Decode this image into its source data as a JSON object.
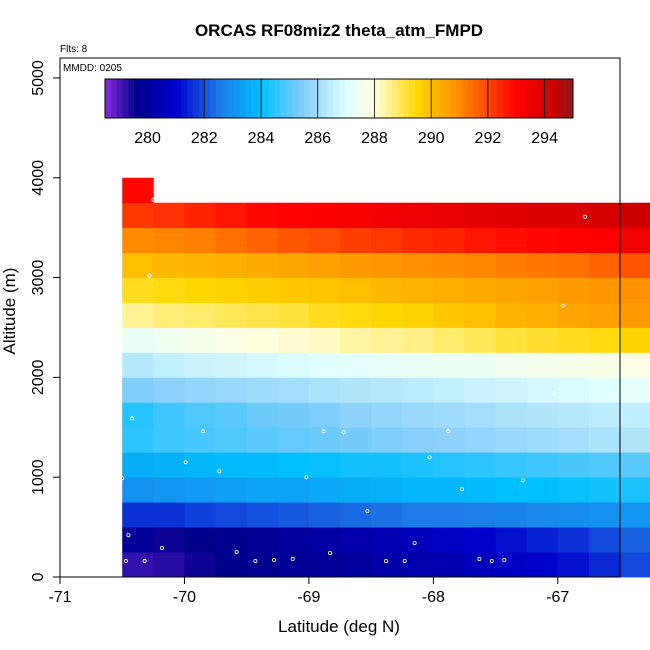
{
  "chart_data": {
    "type": "heatmap",
    "title": "ORCAS RF08miz2 theta_atm_FMPD",
    "annotations": [
      "Flts: 8",
      "MMDD: 0205"
    ],
    "xlabel": "Latitude (deg N)",
    "ylabel": "Altitude (m)",
    "xlim": [
      -71,
      -66.5
    ],
    "ylim": [
      0,
      5200
    ],
    "xticks": [
      -71,
      -70,
      -69,
      -68,
      -67
    ],
    "yticks": [
      0,
      1000,
      2000,
      3000,
      4000,
      5000
    ],
    "cell_width_deg": 0.25,
    "cell_height_m": 250,
    "colorbar": {
      "range": [
        278.5,
        295
      ],
      "ticks": [
        280,
        282,
        284,
        286,
        288,
        290,
        292,
        294
      ],
      "stops": [
        {
          "v": 278.5,
          "c": "#8a2be2"
        },
        {
          "v": 279.6,
          "c": "#00008b"
        },
        {
          "v": 281,
          "c": "#0000cd"
        },
        {
          "v": 282.5,
          "c": "#1e7ae6"
        },
        {
          "v": 284,
          "c": "#00bfff"
        },
        {
          "v": 285.5,
          "c": "#87cefa"
        },
        {
          "v": 287,
          "c": "#e0ffff"
        },
        {
          "v": 288,
          "c": "#ffffe0"
        },
        {
          "v": 289.5,
          "c": "#ffd700"
        },
        {
          "v": 291,
          "c": "#ff8c00"
        },
        {
          "v": 293,
          "c": "#ff0000"
        },
        {
          "v": 294.3,
          "c": "#cd0000"
        },
        {
          "v": 295,
          "c": "#8b1a1a"
        }
      ]
    },
    "rows": [
      {
        "alt": 0,
        "lat_start": -70.5,
        "values": [
          279.2,
          279.3,
          279.5,
          279.6,
          279.7,
          279.8,
          279.9,
          280.0,
          280.2,
          280.3,
          280.4,
          280.6,
          280.8,
          281.0,
          281.2,
          281.5,
          281.9,
          282.6,
          283.4
        ]
      },
      {
        "alt": 250,
        "lat_start": -70.5,
        "values": [
          279.9,
          279.5,
          279.6,
          279.7,
          279.8,
          280.0,
          280.1,
          280.3,
          280.5,
          280.6,
          280.8,
          281.0,
          281.2,
          281.4,
          281.6,
          281.9,
          282.2,
          282.6,
          283.0
        ]
      },
      {
        "alt": 500,
        "lat_start": -70.5,
        "values": [
          281.6,
          281.6,
          281.8,
          281.9,
          282.0,
          282.1,
          282.2,
          282.3,
          282.4,
          282.5,
          282.5,
          282.6,
          282.7,
          282.8,
          282.9,
          283.0,
          283.1,
          283.2
        ]
      },
      {
        "alt": 750,
        "lat_start": -70.5,
        "values": [
          283.0,
          283.1,
          283.2,
          283.3,
          283.4,
          283.4,
          283.5,
          283.6,
          283.7,
          283.8,
          283.8,
          283.9,
          284.0,
          284.0,
          284.1,
          284.2,
          284.3,
          284.4,
          284.5
        ]
      },
      {
        "alt": 1000,
        "lat_start": -70.5,
        "values": [
          283.6,
          283.7,
          283.8,
          283.9,
          283.9,
          284.0,
          284.1,
          284.2,
          284.2,
          284.3,
          284.4,
          284.5,
          284.6,
          284.7,
          284.8,
          284.9,
          285.0,
          285.1,
          285.3
        ]
      },
      {
        "alt": 1250,
        "lat_start": -70.5,
        "values": [
          284.5,
          284.7,
          284.8,
          284.9,
          285.0,
          285.1,
          285.2,
          285.3,
          285.4,
          285.5,
          285.6,
          285.7,
          285.8,
          285.9,
          286.0,
          286.1,
          286.2,
          286.3,
          286.4
        ]
      },
      {
        "alt": 1500,
        "lat_start": -70.5,
        "values": [
          284.4,
          284.7,
          284.9,
          285.0,
          285.2,
          285.3,
          285.4,
          285.6,
          285.7,
          285.8,
          285.9,
          286.0,
          286.1,
          286.2,
          286.3,
          286.4,
          286.5,
          286.6,
          286.7
        ]
      },
      {
        "alt": 1750,
        "lat_start": -70.5,
        "values": [
          285.4,
          285.6,
          285.7,
          285.8,
          285.9,
          286.0,
          286.1,
          286.2,
          286.3,
          286.4,
          286.5,
          286.6,
          286.7,
          286.8,
          286.9,
          287.0,
          287.1,
          287.2,
          287.3
        ]
      },
      {
        "alt": 2000,
        "lat_start": -70.5,
        "values": [
          286.3,
          286.5,
          286.6,
          286.7,
          286.8,
          286.9,
          287.0,
          287.1,
          287.2,
          287.3,
          287.4,
          287.4,
          287.5,
          287.6,
          287.7,
          287.8,
          287.9,
          288.0,
          288.2
        ]
      },
      {
        "alt": 2250,
        "lat_start": -70.5,
        "values": [
          287.3,
          287.5,
          287.7,
          287.9,
          288.0,
          288.1,
          288.2,
          288.4,
          288.5,
          288.6,
          288.8,
          288.9,
          289.1,
          289.2,
          289.3,
          289.4,
          289.6,
          289.7,
          290.3
        ]
      },
      {
        "alt": 2500,
        "lat_start": -70.5,
        "values": [
          288.5,
          288.7,
          288.8,
          288.9,
          289.0,
          289.1,
          289.3,
          289.4,
          289.5,
          289.6,
          289.8,
          290.0,
          290.2,
          290.3,
          290.5,
          290.6,
          290.7,
          290.8,
          291.0,
          291.1
        ]
      },
      {
        "alt": 2750,
        "lat_start": -70.5,
        "values": [
          289.3,
          289.4,
          289.5,
          289.6,
          289.7,
          289.8,
          289.9,
          290.0,
          290.1,
          290.2,
          290.3,
          290.4,
          290.5,
          290.6,
          290.7,
          290.8,
          290.9,
          291.1,
          291.3,
          291.5
        ]
      },
      {
        "alt": 3000,
        "lat_start": -70.5,
        "values": [
          290.0,
          290.1,
          290.2,
          290.3,
          290.4,
          290.5,
          290.6,
          290.7,
          290.8,
          290.9,
          291.0,
          291.1,
          291.2,
          291.3,
          291.4,
          291.6,
          291.8,
          292.0,
          292.5,
          292.9
        ]
      },
      {
        "alt": 3250,
        "lat_start": -70.5,
        "values": [
          291.0,
          291.1,
          291.2,
          291.4,
          291.6,
          291.8,
          291.9,
          292.1,
          292.2,
          292.4,
          292.5,
          292.7,
          292.8,
          292.9,
          293.0,
          293.1,
          293.3,
          293.5,
          293.8,
          294.3
        ]
      },
      {
        "alt": 3500,
        "lat_start": -70.5,
        "values": [
          292.2,
          292.3,
          292.5,
          292.7,
          292.9,
          293.0,
          293.1,
          293.2,
          293.4,
          293.5,
          293.6,
          293.7,
          293.8,
          293.9,
          294.0,
          294.1,
          294.3,
          294.5,
          294.7,
          294.9
        ]
      },
      {
        "alt": 3750,
        "lat_start": -70.5,
        "values": [
          292.9
        ]
      }
    ],
    "points": [
      [
        -70.47,
        160
      ],
      [
        -70.32,
        160
      ],
      [
        -70.45,
        420
      ],
      [
        -70.18,
        290
      ],
      [
        -69.58,
        250
      ],
      [
        -69.43,
        160
      ],
      [
        -69.28,
        170
      ],
      [
        -69.13,
        180
      ],
      [
        -68.83,
        240
      ],
      [
        -68.53,
        660
      ],
      [
        -68.38,
        160
      ],
      [
        -68.23,
        160
      ],
      [
        -68.15,
        340
      ],
      [
        -67.63,
        180
      ],
      [
        -67.53,
        160
      ],
      [
        -67.43,
        170
      ],
      [
        -70.5,
        990
      ],
      [
        -69.99,
        1150
      ],
      [
        -69.72,
        1060
      ],
      [
        -69.02,
        1000
      ],
      [
        -68.03,
        1200
      ],
      [
        -67.77,
        880
      ],
      [
        -67.28,
        970
      ],
      [
        -70.42,
        1590
      ],
      [
        -69.85,
        1460
      ],
      [
        -68.88,
        1460
      ],
      [
        -68.72,
        1450
      ],
      [
        -67.88,
        1460
      ],
      [
        -70.35,
        2300
      ],
      [
        -70.28,
        3020
      ],
      [
        -66.96,
        2720
      ],
      [
        -70.25,
        3780
      ],
      [
        -66.78,
        3610
      ],
      [
        -67.03,
        1840
      ]
    ]
  }
}
